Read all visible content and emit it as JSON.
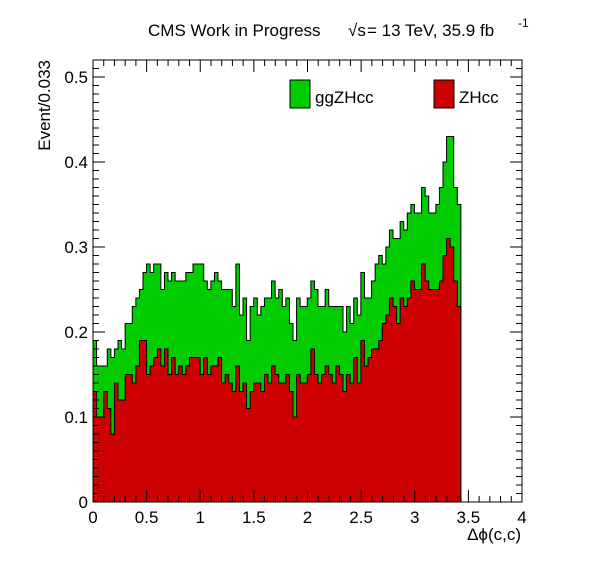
{
  "header": {
    "label": "CMS Work in Progress",
    "sqrt_symbol": "√s",
    "energy_text": " = 13 TeV, 35.9 fb",
    "lumi_exponent": "-1"
  },
  "colors": {
    "ggZHcc": "#00cc00",
    "ZHcc": "#cc0000",
    "outline": "#000000",
    "background": "#ffffff"
  },
  "chart_data": {
    "type": "bar",
    "stacked": true,
    "histogram": true,
    "xlabel": "Δϕ(c,c)",
    "ylabel": "Event/0.033",
    "xlim": [
      0,
      4
    ],
    "ylim": [
      0,
      0.52
    ],
    "bin_width": 0.0333,
    "x_ticks": [
      "0",
      "0.5",
      "1",
      "1.5",
      "2",
      "2.5",
      "3",
      "3.5",
      "4"
    ],
    "y_ticks": [
      "0",
      "0.1",
      "0.2",
      "0.3",
      "0.4",
      "0.5"
    ],
    "legend_placement": "top",
    "series": [
      {
        "name": "ZHcc",
        "color": "#cc0000",
        "values": [
          0.13,
          0.1,
          0.1,
          0.13,
          0.11,
          0.08,
          0.14,
          0.12,
          0.12,
          0.15,
          0.15,
          0.14,
          0.16,
          0.19,
          0.19,
          0.15,
          0.16,
          0.17,
          0.18,
          0.16,
          0.18,
          0.15,
          0.17,
          0.15,
          0.16,
          0.15,
          0.16,
          0.17,
          0.17,
          0.17,
          0.15,
          0.17,
          0.15,
          0.16,
          0.16,
          0.17,
          0.14,
          0.15,
          0.14,
          0.13,
          0.16,
          0.13,
          0.14,
          0.11,
          0.13,
          0.14,
          0.14,
          0.13,
          0.15,
          0.14,
          0.16,
          0.15,
          0.14,
          0.14,
          0.15,
          0.13,
          0.1,
          0.15,
          0.14,
          0.14,
          0.15,
          0.18,
          0.15,
          0.14,
          0.15,
          0.16,
          0.15,
          0.14,
          0.16,
          0.15,
          0.13,
          0.15,
          0.14,
          0.17,
          0.14,
          0.19,
          0.16,
          0.17,
          0.18,
          0.18,
          0.19,
          0.21,
          0.22,
          0.24,
          0.23,
          0.21,
          0.24,
          0.23,
          0.24,
          0.26,
          0.25,
          0.25,
          0.28,
          0.26,
          0.25,
          0.25,
          0.25,
          0.26,
          0.29,
          0.31,
          0.3,
          0.26,
          0.23
        ]
      },
      {
        "name": "ggZHcc",
        "color": "#00cc00",
        "values": [
          0.06,
          0.06,
          0.06,
          0.03,
          0.07,
          0.09,
          0.04,
          0.07,
          0.06,
          0.06,
          0.06,
          0.09,
          0.08,
          0.06,
          0.08,
          0.13,
          0.11,
          0.11,
          0.1,
          0.09,
          0.09,
          0.11,
          0.1,
          0.11,
          0.1,
          0.11,
          0.11,
          0.1,
          0.11,
          0.11,
          0.13,
          0.09,
          0.1,
          0.1,
          0.11,
          0.09,
          0.11,
          0.1,
          0.11,
          0.1,
          0.12,
          0.09,
          0.1,
          0.08,
          0.1,
          0.1,
          0.08,
          0.1,
          0.09,
          0.1,
          0.1,
          0.09,
          0.11,
          0.09,
          0.09,
          0.08,
          0.09,
          0.09,
          0.09,
          0.09,
          0.09,
          0.08,
          0.1,
          0.09,
          0.08,
          0.09,
          0.08,
          0.09,
          0.07,
          0.08,
          0.07,
          0.08,
          0.07,
          0.07,
          0.08,
          0.08,
          0.08,
          0.07,
          0.08,
          0.1,
          0.1,
          0.07,
          0.08,
          0.08,
          0.08,
          0.1,
          0.09,
          0.09,
          0.1,
          0.09,
          0.09,
          0.09,
          0.09,
          0.1,
          0.09,
          0.09,
          0.1,
          0.11,
          0.11,
          0.12,
          0.13,
          0.11,
          0.12
        ]
      }
    ]
  }
}
